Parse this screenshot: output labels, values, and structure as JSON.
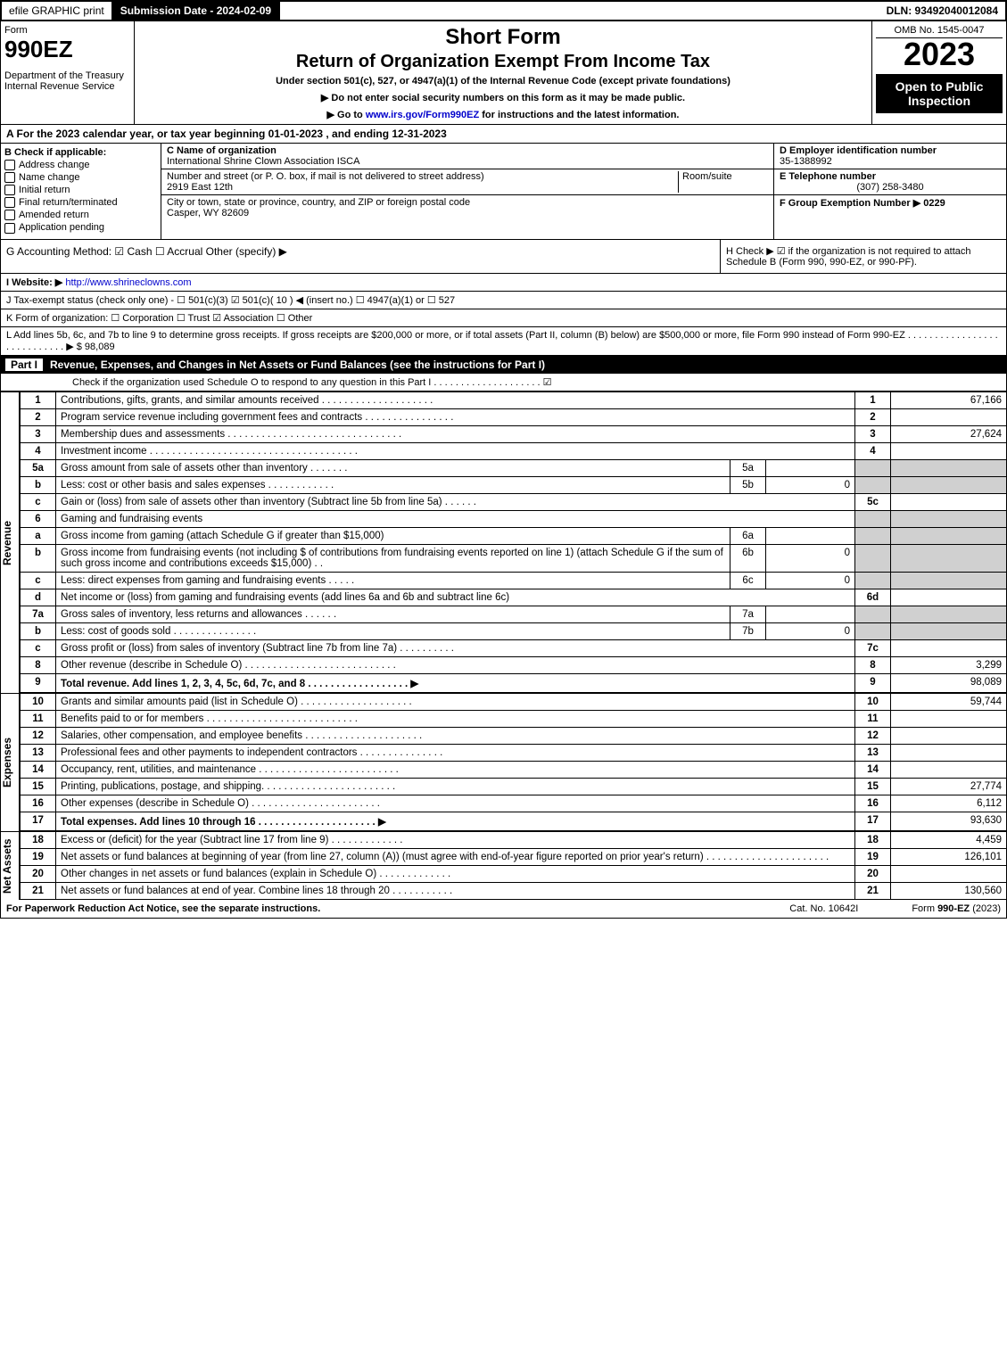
{
  "topbar": {
    "efile": "efile GRAPHIC print",
    "subdate_label": "Submission Date - 2024-02-09",
    "dln": "DLN: 93492040012084"
  },
  "header": {
    "form_word": "Form",
    "form_num": "990EZ",
    "dept": "Department of the Treasury\nInternal Revenue Service",
    "title1": "Short Form",
    "title2": "Return of Organization Exempt From Income Tax",
    "subtitle": "Under section 501(c), 527, or 4947(a)(1) of the Internal Revenue Code (except private foundations)",
    "note1": "▶ Do not enter social security numbers on this form as it may be made public.",
    "note2": "▶ Go to www.irs.gov/Form990EZ for instructions and the latest information.",
    "irs_link": "www.irs.gov/Form990EZ",
    "omb": "OMB No. 1545-0047",
    "year": "2023",
    "open": "Open to Public Inspection"
  },
  "A": "A  For the 2023 calendar year, or tax year beginning 01-01-2023 , and ending 12-31-2023",
  "B": {
    "label": "B  Check if applicable:",
    "opts": [
      "Address change",
      "Name change",
      "Initial return",
      "Final return/terminated",
      "Amended return",
      "Application pending"
    ]
  },
  "C": {
    "name_label": "C Name of organization",
    "name": "International Shrine Clown Association ISCA",
    "street_label": "Number and street (or P. O. box, if mail is not delivered to street address)",
    "room_label": "Room/suite",
    "street": "2919 East 12th",
    "city_label": "City or town, state or province, country, and ZIP or foreign postal code",
    "city": "Casper, WY  82609"
  },
  "D": {
    "ein_label": "D Employer identification number",
    "ein": "35-1388992",
    "tel_label": "E Telephone number",
    "tel": "(307) 258-3480",
    "grp_label": "F Group Exemption Number   ▶ 0229"
  },
  "G": "G Accounting Method:   ☑ Cash  ☐ Accrual   Other (specify) ▶",
  "H": "H   Check ▶  ☑  if the organization is not required to attach Schedule B (Form 990, 990-EZ, or 990-PF).",
  "I": {
    "label": "I Website: ▶",
    "url": "http://www.shrineclowns.com"
  },
  "J": "J Tax-exempt status (check only one) -  ☐ 501(c)(3)  ☑  501(c)( 10 ) ◀ (insert no.)  ☐ 4947(a)(1) or  ☐ 527",
  "K": "K Form of organization:   ☐ Corporation   ☐ Trust   ☑ Association   ☐ Other",
  "L": "L Add lines 5b, 6c, and 7b to line 9 to determine gross receipts. If gross receipts are $200,000 or more, or if total assets (Part II, column (B) below) are $500,000 or more, file Form 990 instead of Form 990-EZ  . . . . . . . . . . . . . . . . . . . . . . . . . . . .  ▶ $ 98,089",
  "part1": {
    "title": "Revenue, Expenses, and Changes in Net Assets or Fund Balances (see the instructions for Part I)",
    "check": "Check if the organization used Schedule O to respond to any question in this Part I . . . . . . . . . . . . . . . . . . . .  ☑"
  },
  "sections": {
    "revenue": "Revenue",
    "expenses": "Expenses",
    "netassets": "Net Assets"
  },
  "lines": [
    {
      "n": "1",
      "d": "Contributions, gifts, grants, and similar amounts received  . . . . . . . . . . . . . . . . . . . .",
      "ln": "1",
      "amt": "67,166"
    },
    {
      "n": "2",
      "d": "Program service revenue including government fees and contracts  . . . . . . . . . . . . . . . .",
      "ln": "2",
      "amt": ""
    },
    {
      "n": "3",
      "d": "Membership dues and assessments  . . . . . . . . . . . . . . . . . . . . . . . . . . . . . . .",
      "ln": "3",
      "amt": "27,624"
    },
    {
      "n": "4",
      "d": "Investment income . . . . . . . . . . . . . . . . . . . . . . . . . . . . . . . . . . . . .",
      "ln": "4",
      "amt": ""
    },
    {
      "n": "5a",
      "d": "Gross amount from sale of assets other than inventory  . . . . . . .",
      "sub": "5a",
      "subamt": ""
    },
    {
      "n": "b",
      "d": "Less: cost or other basis and sales expenses  . . . . . . . . . . . .",
      "sub": "5b",
      "subamt": "0"
    },
    {
      "n": "c",
      "d": "Gain or (loss) from sale of assets other than inventory (Subtract line 5b from line 5a)  . . . . . .",
      "ln": "5c",
      "amt": ""
    },
    {
      "n": "6",
      "d": "Gaming and fundraising events"
    },
    {
      "n": "a",
      "d": "Gross income from gaming (attach Schedule G if greater than $15,000)",
      "sub": "6a",
      "subamt": ""
    },
    {
      "n": "b",
      "d": "Gross income from fundraising events (not including $                    of contributions from fundraising events reported on line 1) (attach Schedule G if the sum of such gross income and contributions exceeds $15,000)   . .",
      "sub": "6b",
      "subamt": "0"
    },
    {
      "n": "c",
      "d": "Less: direct expenses from gaming and fundraising events   . . . . .",
      "sub": "6c",
      "subamt": "0"
    },
    {
      "n": "d",
      "d": "Net income or (loss) from gaming and fundraising events (add lines 6a and 6b and subtract line 6c)",
      "ln": "6d",
      "amt": ""
    },
    {
      "n": "7a",
      "d": "Gross sales of inventory, less returns and allowances  . . . . . .",
      "sub": "7a",
      "subamt": ""
    },
    {
      "n": "b",
      "d": "Less: cost of goods sold      . . . . . . . . . . . . . . .",
      "sub": "7b",
      "subamt": "0"
    },
    {
      "n": "c",
      "d": "Gross profit or (loss) from sales of inventory (Subtract line 7b from line 7a)  . . . . . . . . . .",
      "ln": "7c",
      "amt": ""
    },
    {
      "n": "8",
      "d": "Other revenue (describe in Schedule O) . . . . . . . . . . . . . . . . . . . . . . . . . . .",
      "ln": "8",
      "amt": "3,299"
    },
    {
      "n": "9",
      "d": "Total revenue. Add lines 1, 2, 3, 4, 5c, 6d, 7c, and 8  . . . . . . . . . . . . . . . . . .  ▶",
      "ln": "9",
      "amt": "98,089",
      "bold": true
    }
  ],
  "exp": [
    {
      "n": "10",
      "d": "Grants and similar amounts paid (list in Schedule O) . . . . . . . . . . . . . . . . . . . .",
      "ln": "10",
      "amt": "59,744"
    },
    {
      "n": "11",
      "d": "Benefits paid to or for members    . . . . . . . . . . . . . . . . . . . . . . . . . . .",
      "ln": "11",
      "amt": ""
    },
    {
      "n": "12",
      "d": "Salaries, other compensation, and employee benefits . . . . . . . . . . . . . . . . . . . . .",
      "ln": "12",
      "amt": ""
    },
    {
      "n": "13",
      "d": "Professional fees and other payments to independent contractors  . . . . . . . . . . . . . . .",
      "ln": "13",
      "amt": ""
    },
    {
      "n": "14",
      "d": "Occupancy, rent, utilities, and maintenance . . . . . . . . . . . . . . . . . . . . . . . . .",
      "ln": "14",
      "amt": ""
    },
    {
      "n": "15",
      "d": "Printing, publications, postage, and shipping. . . . . . . . . . . . . . . . . . . . . . . .",
      "ln": "15",
      "amt": "27,774"
    },
    {
      "n": "16",
      "d": "Other expenses (describe in Schedule O)    . . . . . . . . . . . . . . . . . . . . . . .",
      "ln": "16",
      "amt": "6,112"
    },
    {
      "n": "17",
      "d": "Total expenses. Add lines 10 through 16    . . . . . . . . . . . . . . . . . . . . .  ▶",
      "ln": "17",
      "amt": "93,630",
      "bold": true
    }
  ],
  "net": [
    {
      "n": "18",
      "d": "Excess or (deficit) for the year (Subtract line 17 from line 9)     . . . . . . . . . . . . .",
      "ln": "18",
      "amt": "4,459"
    },
    {
      "n": "19",
      "d": "Net assets or fund balances at beginning of year (from line 27, column (A)) (must agree with end-of-year figure reported on prior year's return) . . . . . . . . . . . . . . . . . . . . . .",
      "ln": "19",
      "amt": "126,101"
    },
    {
      "n": "20",
      "d": "Other changes in net assets or fund balances (explain in Schedule O) . . . . . . . . . . . . .",
      "ln": "20",
      "amt": ""
    },
    {
      "n": "21",
      "d": "Net assets or fund balances at end of year. Combine lines 18 through 20 . . . . . . . . . . .",
      "ln": "21",
      "amt": "130,560"
    }
  ],
  "footer": {
    "left": "For Paperwork Reduction Act Notice, see the separate instructions.",
    "mid": "Cat. No. 10642I",
    "right": "Form 990-EZ (2023)"
  }
}
